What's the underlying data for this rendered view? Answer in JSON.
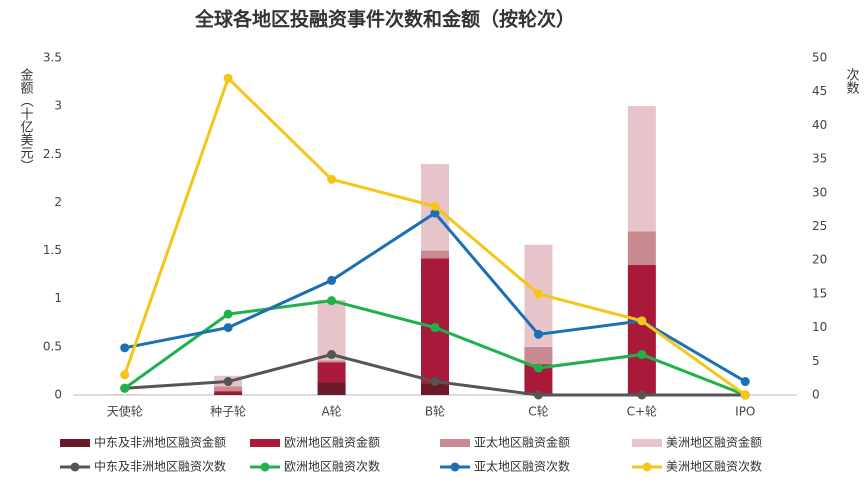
{
  "chart_data": {
    "type": "combo",
    "stacked": true,
    "title": "全球各地区投融资事件次数和金额（按轮次）",
    "y_label": "金额（十亿美元）",
    "y2_label": "次数",
    "categories": [
      "天使轮",
      "种子轮",
      "A轮",
      "B轮",
      "C轮",
      "C+轮",
      "IPO"
    ],
    "ylim": [
      0,
      3.5
    ],
    "yticks": [
      0,
      0.5,
      1,
      1.5,
      2,
      2.5,
      3,
      3.5
    ],
    "y2lim": [
      0,
      50
    ],
    "y2ticks": [
      0,
      5,
      10,
      15,
      20,
      25,
      30,
      35,
      40,
      45,
      50
    ],
    "series": [
      {
        "name": "中东及非洲地区融资金额",
        "type": "bar",
        "color": "#6b1a2a",
        "values": [
          0,
          0.01,
          0.13,
          0.12,
          0.02,
          0.02,
          0
        ]
      },
      {
        "name": "欧洲地区融资金额",
        "type": "bar",
        "color": "#a8193a",
        "values": [
          0,
          0.03,
          0.21,
          1.3,
          0.3,
          1.33,
          0
        ]
      },
      {
        "name": "亚太地区融资金额",
        "type": "bar",
        "color": "#c98a92",
        "values": [
          0,
          0.05,
          0.02,
          0.08,
          0.18,
          0.35,
          0
        ]
      },
      {
        "name": "美洲地区融资金额",
        "type": "bar",
        "color": "#e6c4c9",
        "values": [
          0.01,
          0.11,
          0.63,
          0.9,
          1.06,
          1.3,
          0
        ]
      },
      {
        "name": "中东及非洲地区融资次数",
        "type": "line",
        "axis": "y2",
        "color": "#555555",
        "values": [
          1,
          2,
          6,
          2,
          0,
          0,
          0
        ]
      },
      {
        "name": "欧洲地区融资次数",
        "type": "line",
        "axis": "y2",
        "color": "#1db34a",
        "values": [
          1,
          12,
          14,
          10,
          4,
          6,
          0
        ]
      },
      {
        "name": "亚太地区融资次数",
        "type": "line",
        "axis": "y2",
        "color": "#1a6fb5",
        "values": [
          7,
          10,
          17,
          27,
          9,
          11,
          2
        ]
      },
      {
        "name": "美洲地区融资次数",
        "type": "line",
        "axis": "y2",
        "color": "#f5c518",
        "values": [
          3,
          47,
          32,
          28,
          15,
          11,
          0
        ]
      }
    ]
  }
}
